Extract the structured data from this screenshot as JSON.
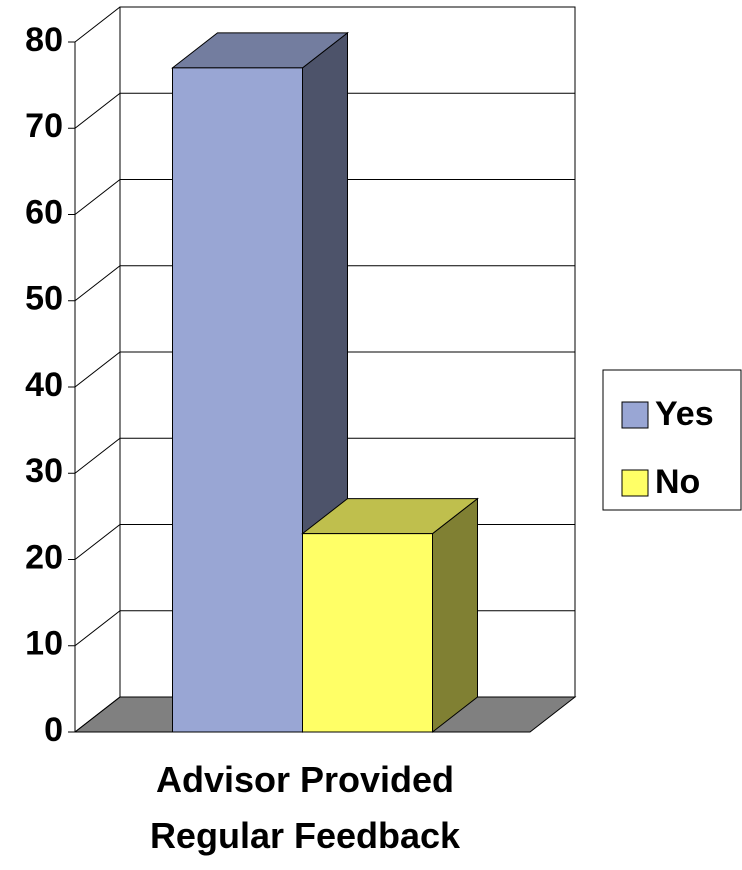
{
  "chart_data": {
    "type": "bar3d",
    "categories": [
      "Advisor Provided Regular Feedback"
    ],
    "series": [
      {
        "name": "Yes",
        "color": "#99a6d4",
        "values": [
          77
        ]
      },
      {
        "name": "No",
        "color": "#ffff66",
        "values": [
          23
        ]
      }
    ],
    "ylim": [
      0,
      80
    ],
    "yticks": [
      0,
      10,
      20,
      30,
      40,
      50,
      60,
      70,
      80
    ],
    "grid": true,
    "legend": "right"
  }
}
